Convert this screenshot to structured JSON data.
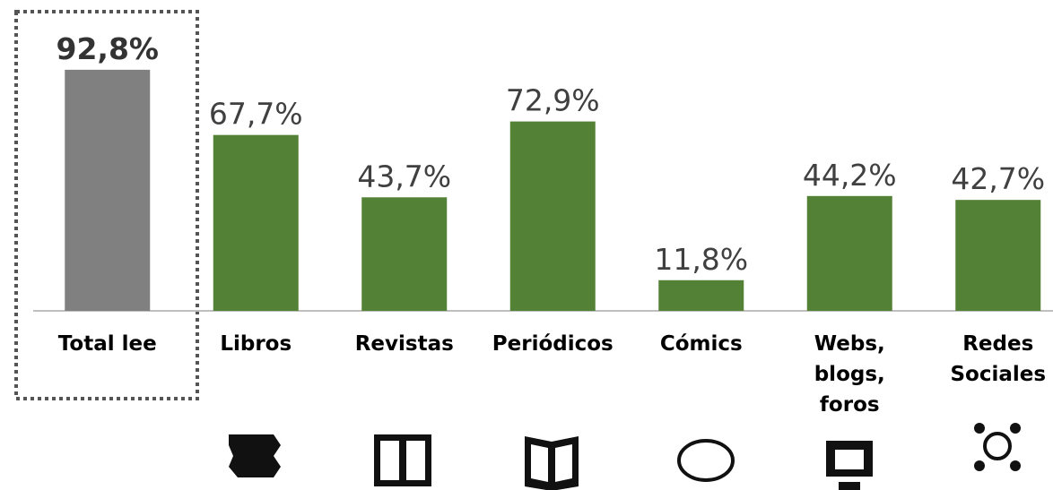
{
  "chart_data": {
    "type": "bar",
    "categories": [
      "Total lee",
      "Libros",
      "Revistas",
      "Periódicos",
      "Cómics",
      "Webs, blogs, foros",
      "Redes Sociales"
    ],
    "values": [
      92.8,
      67.7,
      43.7,
      72.9,
      11.8,
      44.2,
      42.7
    ],
    "value_labels": [
      "92,8%",
      "67,7%",
      "43,7%",
      "72,9%",
      "11,8%",
      "44,2%",
      "42,7%"
    ],
    "colors": [
      "#808080",
      "#538135",
      "#538135",
      "#538135",
      "#538135",
      "#538135",
      "#538135"
    ],
    "ylim": [
      0,
      100
    ]
  }
}
